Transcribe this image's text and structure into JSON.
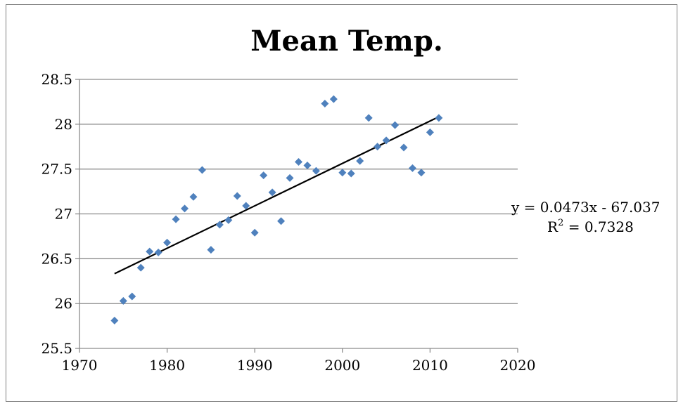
{
  "chart_data": {
    "type": "scatter",
    "title": "Mean Temp.",
    "xlabel": "",
    "ylabel": "",
    "xlim": [
      1970,
      2020
    ],
    "ylim": [
      25.5,
      28.5
    ],
    "xticks": [
      1970,
      1980,
      1990,
      2000,
      2010,
      2020
    ],
    "yticks": [
      25.5,
      26,
      26.5,
      27,
      27.5,
      28,
      28.5
    ],
    "ytick_labels": [
      "25.5",
      "26",
      "26.5",
      "27",
      "27.5",
      "28",
      "28.5"
    ],
    "grid": "horizontal",
    "marker_color": "#4f81bd",
    "series": [
      {
        "x": [
          1974,
          1975,
          1976,
          1977,
          1978,
          1979,
          1980,
          1981,
          1982,
          1983,
          1984,
          1985,
          1986,
          1987,
          1988,
          1989,
          1990,
          1991,
          1992,
          1993,
          1994,
          1995,
          1996,
          1997,
          1998,
          1999,
          2000,
          2001,
          2002,
          2003,
          2004,
          2005,
          2006,
          2007,
          2008,
          2009,
          2010,
          2011
        ],
        "y": [
          25.81,
          26.03,
          26.08,
          26.4,
          26.58,
          26.57,
          26.68,
          26.94,
          27.06,
          27.19,
          27.49,
          26.6,
          26.88,
          26.93,
          27.2,
          27.09,
          26.79,
          27.43,
          27.24,
          26.92,
          27.4,
          27.58,
          27.54,
          27.48,
          28.23,
          28.28,
          27.46,
          27.45,
          27.59,
          28.07,
          27.75,
          27.82,
          27.99,
          27.74,
          27.51,
          27.46,
          27.91,
          28.07
        ]
      }
    ],
    "trendline": {
      "slope": 0.0473,
      "intercept": -67.037,
      "x_range": [
        1974,
        2011
      ],
      "color": "#000000",
      "equation_label": "y = 0.0473x - 67.037",
      "r2_label": "R",
      "r2_sup": "2",
      "r2_value": " = 0.7328"
    }
  }
}
